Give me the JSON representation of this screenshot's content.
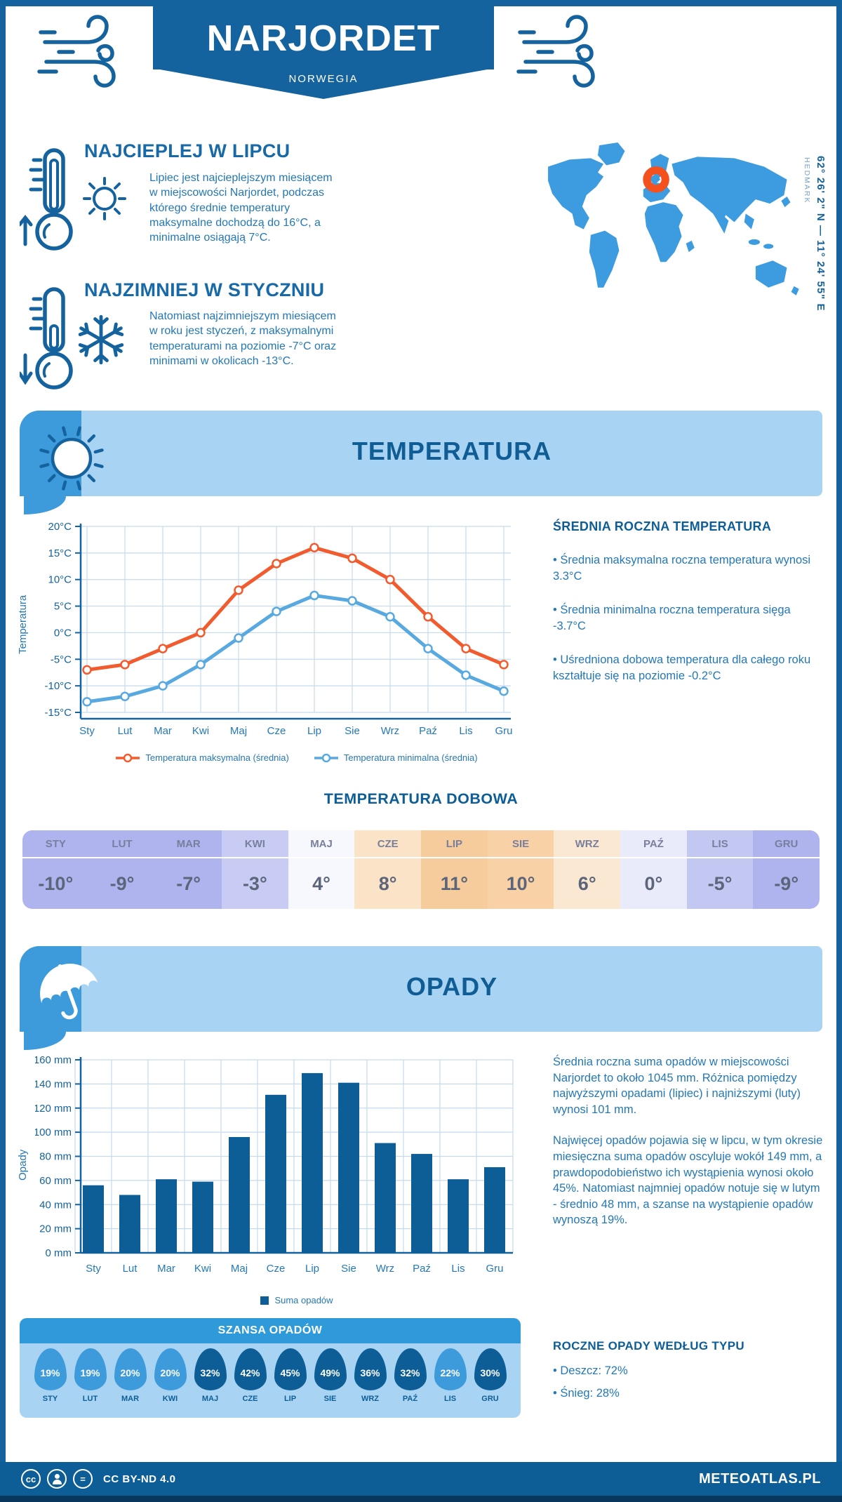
{
  "colors": {
    "banner_blue": "#15639e",
    "accent_dark": "#0d5e96",
    "band_light": "#a9d3f3",
    "tab_blue": "#3d9bdc",
    "text_blue": "#2478b6",
    "map_blue": "#3d9be0",
    "marker_orange": "#f4511e",
    "line_max_orange": "#f15b2e",
    "line_min_blue": "#58a9e0",
    "grid": "#c6daed"
  },
  "header": {
    "title": "NARJORDET",
    "subtitle": "NORWEGIA",
    "coordinates": "62° 26' 2\" N — 11° 24' 55\" E",
    "region": "HEDMARK"
  },
  "highlights": {
    "warmest": {
      "title": "NAJCIEPLEJ W LIPCU",
      "text": "Lipiec jest najcieplejszym miesiącem w miejscowości Narjordet, podczas którego średnie temperatury maksymalne dochodzą do 16°C, a minimalne osiągają 7°C."
    },
    "coldest": {
      "title": "NAJZIMNIEJ W STYCZNIU",
      "text": "Natomiast najzimniejszym miesiącem w roku jest styczeń, z maksymalnymi temperaturami na poziomie -7°C oraz minimami w okolicach -13°C."
    }
  },
  "temperature_section": {
    "band_title": "TEMPERATURA",
    "summary_title": "ŚREDNIA ROCZNA TEMPERATURA",
    "bullets": [
      "• Średnia maksymalna roczna temperatura wynosi 3.3°C",
      "• Średnia minimalna roczna temperatura sięga -3.7°C",
      "• Uśredniona dobowa temperatura dla całego roku kształtuje się na poziomie -0.2°C"
    ]
  },
  "daily_table": {
    "title": "TEMPERATURA DOBOWA",
    "months": [
      "STY",
      "LUT",
      "MAR",
      "KWI",
      "MAJ",
      "CZE",
      "LIP",
      "SIE",
      "WRZ",
      "PAŹ",
      "LIS",
      "GRU"
    ],
    "values": [
      "-10°",
      "-9°",
      "-7°",
      "-3°",
      "4°",
      "8°",
      "11°",
      "10°",
      "6°",
      "0°",
      "-5°",
      "-9°"
    ],
    "cell_colors": [
      "#afb4ee",
      "#afb4ee",
      "#afb4ee",
      "#c8ccf4",
      "#f7f8fd",
      "#fbe3c8",
      "#f7cc9c",
      "#f8d1a6",
      "#fbe8d2",
      "#e9ebfa",
      "#c3c8f2",
      "#afb4ee"
    ]
  },
  "precipitation_section": {
    "band_title": "OPADY",
    "paragraph1": "Średnia roczna suma opadów w miejscowości Narjordet to około 1045 mm. Różnica pomiędzy najwyższymi opadami (lipiec) i najniższymi (luty) wynosi 101 mm.",
    "paragraph2": "Najwięcej opadów pojawia się w lipcu, w tym okresie miesięczna suma opadów oscyluje wokół 149 mm, a prawdopodobieństwo ich wystąpienia wynosi około 45%. Natomiast najmniej opadów notuje się w lutym - średnio 48 mm, a szanse na wystąpienie opadów wynoszą 19%.",
    "chance_title": "SZANSA OPADÓW",
    "chance": [
      {
        "month": "STY",
        "value": "19%",
        "shade": "light"
      },
      {
        "month": "LUT",
        "value": "19%",
        "shade": "light"
      },
      {
        "month": "MAR",
        "value": "20%",
        "shade": "light"
      },
      {
        "month": "KWI",
        "value": "20%",
        "shade": "light"
      },
      {
        "month": "MAJ",
        "value": "32%",
        "shade": "dark"
      },
      {
        "month": "CZE",
        "value": "42%",
        "shade": "dark"
      },
      {
        "month": "LIP",
        "value": "45%",
        "shade": "dark"
      },
      {
        "month": "SIE",
        "value": "49%",
        "shade": "dark"
      },
      {
        "month": "WRZ",
        "value": "36%",
        "shade": "dark"
      },
      {
        "month": "PAŹ",
        "value": "32%",
        "shade": "dark"
      },
      {
        "month": "LIS",
        "value": "22%",
        "shade": "light"
      },
      {
        "month": "GRU",
        "value": "30%",
        "shade": "dark"
      }
    ],
    "type_title": "ROCZNE OPADY WEDŁUG TYPU",
    "type_bullets": [
      "• Deszcz: 72%",
      "• Śnieg: 28%"
    ]
  },
  "footer": {
    "license": "CC BY-ND 4.0",
    "brand": "METEOATLAS.PL"
  },
  "chart_data": [
    {
      "type": "line",
      "title": "TEMPERATURA",
      "x": [
        "Sty",
        "Lut",
        "Mar",
        "Kwi",
        "Maj",
        "Cze",
        "Lip",
        "Sie",
        "Wrz",
        "Paź",
        "Lis",
        "Gru"
      ],
      "ylabel": "Temperatura",
      "ylim": [
        -15,
        20
      ],
      "ytick_step": 5,
      "ytick_suffix": "°C",
      "grid": true,
      "legend_position": "bottom",
      "series": [
        {
          "name": "Temperatura maksymalna (średnia)",
          "color": "#f15b2e",
          "values": [
            -7,
            -6,
            -3,
            0,
            8,
            13,
            16,
            14,
            10,
            3,
            -3,
            -6
          ]
        },
        {
          "name": "Temperatura minimalna (średnia)",
          "color": "#58a9e0",
          "values": [
            -13,
            -12,
            -10,
            -6,
            -1,
            4,
            7,
            6,
            3,
            -3,
            -8,
            -11
          ]
        }
      ]
    },
    {
      "type": "bar",
      "title": "OPADY",
      "categories": [
        "Sty",
        "Lut",
        "Mar",
        "Kwi",
        "Maj",
        "Cze",
        "Lip",
        "Sie",
        "Wrz",
        "Paź",
        "Lis",
        "Gru"
      ],
      "values": [
        56,
        48,
        61,
        59,
        96,
        131,
        149,
        141,
        91,
        82,
        61,
        71
      ],
      "ylabel": "Opady",
      "ylim": [
        0,
        160
      ],
      "ytick_step": 20,
      "ytick_suffix": " mm",
      "grid": true,
      "bar_color": "#0d5e96",
      "legend": "Suma opadów",
      "legend_position": "bottom"
    }
  ]
}
